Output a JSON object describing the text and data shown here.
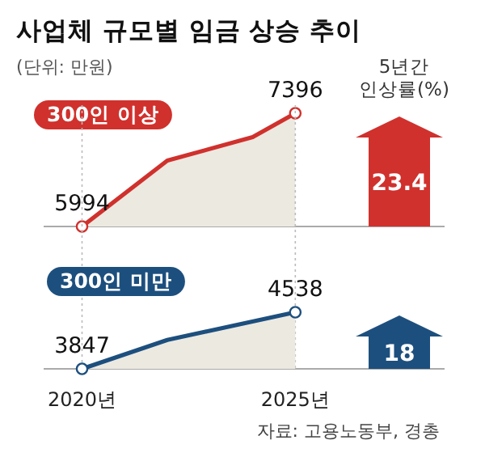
{
  "chart_data": [
    {
      "type": "line",
      "title": "사업체 규모별 임금 상승 추이",
      "subtitle": "(단위: 만원)",
      "x": [
        2020,
        2022,
        2024,
        2025
      ],
      "xlim": [
        2019.1,
        2028.5
      ],
      "marker": "circle",
      "series": [
        {
          "name": "300인 이상",
          "color": "#d0312d",
          "values": [
            5994,
            6810,
            7100,
            7396
          ],
          "value_labels": [
            "5994",
            null,
            null,
            "7396"
          ]
        }
      ],
      "annotations": [
        "23.4",
        "5년간 인상률(%)"
      ]
    },
    {
      "type": "line",
      "x": [
        2020,
        2022,
        2025
      ],
      "xlim": [
        2019.1,
        2028.5
      ],
      "xticks": [
        {
          "value": 2020,
          "label": "2020년"
        },
        {
          "value": 2025,
          "label": "2025년"
        }
      ],
      "tick_labels": "x",
      "grid": "x",
      "marker": "circle",
      "series": [
        {
          "name": "300인 미만",
          "color": "#1d4f7e",
          "values": [
            3847,
            4200,
            4538
          ],
          "value_labels": [
            "3847",
            null,
            "4538"
          ]
        }
      ],
      "annotations": [
        "18",
        "자료: 고용노동부, 경총"
      ]
    }
  ]
}
